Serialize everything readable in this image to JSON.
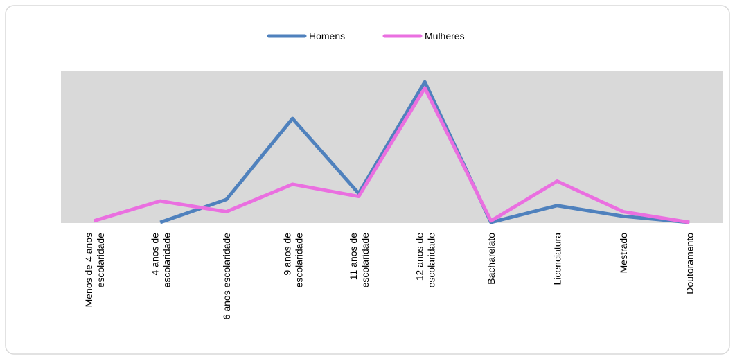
{
  "chart_data": {
    "type": "line",
    "categories": [
      "Menos de 4 anos\nescolaridade",
      "4 anos de\nescolaridade",
      "6 anos escolaridade",
      "9 anos de\nescolaridade",
      "11 anos de\nescolaridade",
      "12 anos de\nescolaridade",
      "Bacharelato",
      "Licenciatura",
      "Mestrado",
      "Doutoramento"
    ],
    "series": [
      {
        "name": "Homens",
        "color": "#4f81bd",
        "values": [
          null,
          0,
          15,
          68,
          19,
          92,
          0,
          11,
          4,
          0
        ]
      },
      {
        "name": "Mulheres",
        "color": "#ea6fe0",
        "values": [
          1,
          14,
          7,
          25,
          17,
          88,
          1,
          27,
          7,
          0
        ]
      }
    ],
    "legend": "top"
  }
}
